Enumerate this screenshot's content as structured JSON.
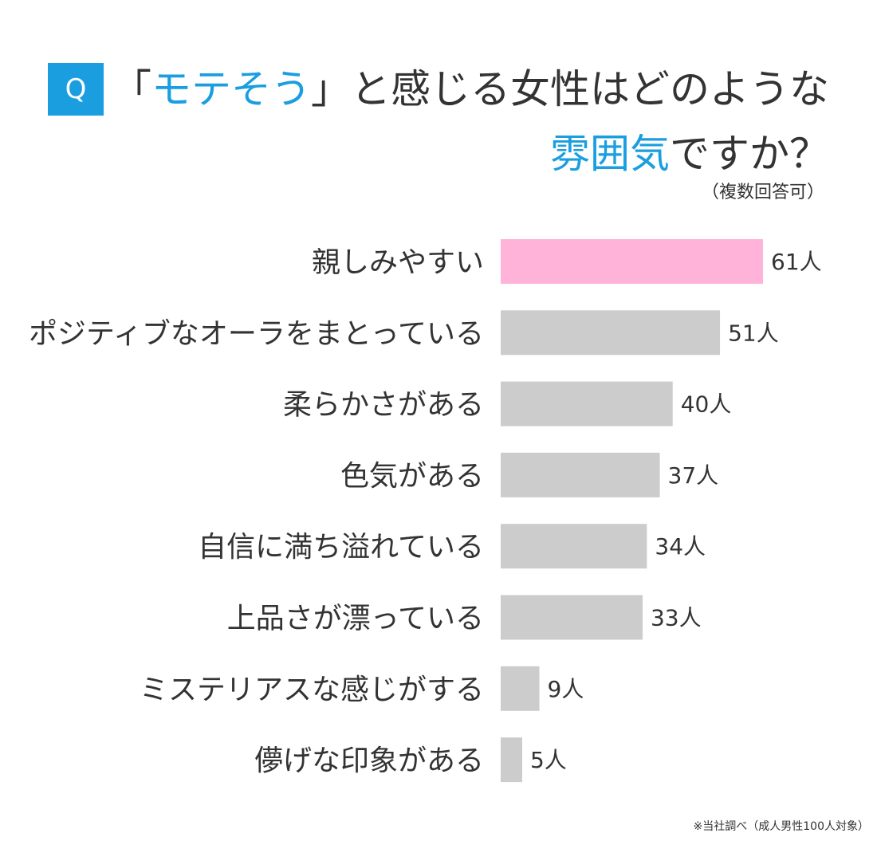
{
  "header": {
    "q_label": "Q",
    "title_line1_prefix": "「",
    "title_line1_highlight": "モテそう",
    "title_line1_suffix": "」と感じる女性はどのような",
    "title_line2_highlight": "雰囲気",
    "title_line2_suffix": "ですか？",
    "note": "（複数回答可）"
  },
  "colors": {
    "accent": "#1a9ee0",
    "highlight_bar": "#ffb3d9",
    "bar": "#cccccc",
    "text": "#333333"
  },
  "chart_data": {
    "type": "bar",
    "orientation": "horizontal",
    "categories": [
      "親しみやすい",
      "ポジティブなオーラをまとっている",
      "柔らかさがある",
      "色気がある",
      "自信に満ち溢れている",
      "上品さが漂っている",
      "ミステリアスな感じがする",
      "儚げな印象がある"
    ],
    "values": [
      61,
      51,
      40,
      37,
      34,
      33,
      9,
      5
    ],
    "value_labels": [
      "61人",
      "51人",
      "40人",
      "37人",
      "34人",
      "33人",
      "9人",
      "5人"
    ],
    "highlight_index": 0,
    "xlim": [
      0,
      61
    ],
    "grid": false,
    "legend": "none"
  },
  "footnote": "※当社調べ（成人男性100人対象）"
}
